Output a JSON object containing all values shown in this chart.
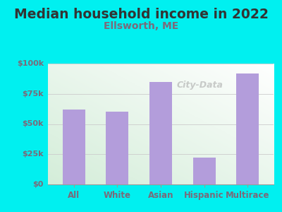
{
  "title": "Median household income in 2022",
  "subtitle": "Ellsworth, ME",
  "categories": [
    "All",
    "White",
    "Asian",
    "Hispanic",
    "Multirace"
  ],
  "values": [
    62000,
    60000,
    85000,
    22000,
    92000
  ],
  "bar_color": "#b39ddb",
  "background_color": "#00f0f0",
  "plot_bg_color_topleft": "#d4edda",
  "plot_bg_color_bottomright": "#ffffff",
  "title_color": "#333333",
  "subtitle_color": "#7a6a7a",
  "ytick_color": "#7a6a7a",
  "xtick_color": "#7a6a7a",
  "ylim": [
    0,
    100000
  ],
  "yticks": [
    0,
    25000,
    50000,
    75000,
    100000
  ],
  "ytick_labels": [
    "$0",
    "$25k",
    "$50k",
    "$75k",
    "$100k"
  ],
  "title_fontsize": 13.5,
  "subtitle_fontsize": 10,
  "watermark_text": "City-Data",
  "watermark_color": "#aaaaaa"
}
